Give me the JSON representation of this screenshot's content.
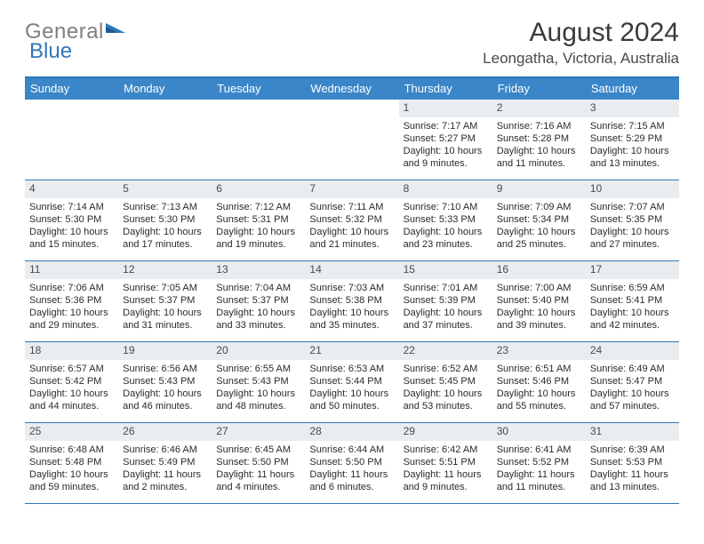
{
  "brand": {
    "part1": "General",
    "part2": "Blue"
  },
  "title": "August 2024",
  "location": "Leongatha, Victoria, Australia",
  "colors": {
    "header_bar": "#3a86c8",
    "border": "#2f77b8",
    "daynum_bg": "#e9edf0",
    "text": "#2b2b2b"
  },
  "dow": [
    "Sunday",
    "Monday",
    "Tuesday",
    "Wednesday",
    "Thursday",
    "Friday",
    "Saturday"
  ],
  "weeks": [
    [
      {
        "n": "",
        "sr": "",
        "ss": "",
        "dl": ""
      },
      {
        "n": "",
        "sr": "",
        "ss": "",
        "dl": ""
      },
      {
        "n": "",
        "sr": "",
        "ss": "",
        "dl": ""
      },
      {
        "n": "",
        "sr": "",
        "ss": "",
        "dl": ""
      },
      {
        "n": "1",
        "sr": "Sunrise: 7:17 AM",
        "ss": "Sunset: 5:27 PM",
        "dl": "Daylight: 10 hours and 9 minutes."
      },
      {
        "n": "2",
        "sr": "Sunrise: 7:16 AM",
        "ss": "Sunset: 5:28 PM",
        "dl": "Daylight: 10 hours and 11 minutes."
      },
      {
        "n": "3",
        "sr": "Sunrise: 7:15 AM",
        "ss": "Sunset: 5:29 PM",
        "dl": "Daylight: 10 hours and 13 minutes."
      }
    ],
    [
      {
        "n": "4",
        "sr": "Sunrise: 7:14 AM",
        "ss": "Sunset: 5:30 PM",
        "dl": "Daylight: 10 hours and 15 minutes."
      },
      {
        "n": "5",
        "sr": "Sunrise: 7:13 AM",
        "ss": "Sunset: 5:30 PM",
        "dl": "Daylight: 10 hours and 17 minutes."
      },
      {
        "n": "6",
        "sr": "Sunrise: 7:12 AM",
        "ss": "Sunset: 5:31 PM",
        "dl": "Daylight: 10 hours and 19 minutes."
      },
      {
        "n": "7",
        "sr": "Sunrise: 7:11 AM",
        "ss": "Sunset: 5:32 PM",
        "dl": "Daylight: 10 hours and 21 minutes."
      },
      {
        "n": "8",
        "sr": "Sunrise: 7:10 AM",
        "ss": "Sunset: 5:33 PM",
        "dl": "Daylight: 10 hours and 23 minutes."
      },
      {
        "n": "9",
        "sr": "Sunrise: 7:09 AM",
        "ss": "Sunset: 5:34 PM",
        "dl": "Daylight: 10 hours and 25 minutes."
      },
      {
        "n": "10",
        "sr": "Sunrise: 7:07 AM",
        "ss": "Sunset: 5:35 PM",
        "dl": "Daylight: 10 hours and 27 minutes."
      }
    ],
    [
      {
        "n": "11",
        "sr": "Sunrise: 7:06 AM",
        "ss": "Sunset: 5:36 PM",
        "dl": "Daylight: 10 hours and 29 minutes."
      },
      {
        "n": "12",
        "sr": "Sunrise: 7:05 AM",
        "ss": "Sunset: 5:37 PM",
        "dl": "Daylight: 10 hours and 31 minutes."
      },
      {
        "n": "13",
        "sr": "Sunrise: 7:04 AM",
        "ss": "Sunset: 5:37 PM",
        "dl": "Daylight: 10 hours and 33 minutes."
      },
      {
        "n": "14",
        "sr": "Sunrise: 7:03 AM",
        "ss": "Sunset: 5:38 PM",
        "dl": "Daylight: 10 hours and 35 minutes."
      },
      {
        "n": "15",
        "sr": "Sunrise: 7:01 AM",
        "ss": "Sunset: 5:39 PM",
        "dl": "Daylight: 10 hours and 37 minutes."
      },
      {
        "n": "16",
        "sr": "Sunrise: 7:00 AM",
        "ss": "Sunset: 5:40 PM",
        "dl": "Daylight: 10 hours and 39 minutes."
      },
      {
        "n": "17",
        "sr": "Sunrise: 6:59 AM",
        "ss": "Sunset: 5:41 PM",
        "dl": "Daylight: 10 hours and 42 minutes."
      }
    ],
    [
      {
        "n": "18",
        "sr": "Sunrise: 6:57 AM",
        "ss": "Sunset: 5:42 PM",
        "dl": "Daylight: 10 hours and 44 minutes."
      },
      {
        "n": "19",
        "sr": "Sunrise: 6:56 AM",
        "ss": "Sunset: 5:43 PM",
        "dl": "Daylight: 10 hours and 46 minutes."
      },
      {
        "n": "20",
        "sr": "Sunrise: 6:55 AM",
        "ss": "Sunset: 5:43 PM",
        "dl": "Daylight: 10 hours and 48 minutes."
      },
      {
        "n": "21",
        "sr": "Sunrise: 6:53 AM",
        "ss": "Sunset: 5:44 PM",
        "dl": "Daylight: 10 hours and 50 minutes."
      },
      {
        "n": "22",
        "sr": "Sunrise: 6:52 AM",
        "ss": "Sunset: 5:45 PM",
        "dl": "Daylight: 10 hours and 53 minutes."
      },
      {
        "n": "23",
        "sr": "Sunrise: 6:51 AM",
        "ss": "Sunset: 5:46 PM",
        "dl": "Daylight: 10 hours and 55 minutes."
      },
      {
        "n": "24",
        "sr": "Sunrise: 6:49 AM",
        "ss": "Sunset: 5:47 PM",
        "dl": "Daylight: 10 hours and 57 minutes."
      }
    ],
    [
      {
        "n": "25",
        "sr": "Sunrise: 6:48 AM",
        "ss": "Sunset: 5:48 PM",
        "dl": "Daylight: 10 hours and 59 minutes."
      },
      {
        "n": "26",
        "sr": "Sunrise: 6:46 AM",
        "ss": "Sunset: 5:49 PM",
        "dl": "Daylight: 11 hours and 2 minutes."
      },
      {
        "n": "27",
        "sr": "Sunrise: 6:45 AM",
        "ss": "Sunset: 5:50 PM",
        "dl": "Daylight: 11 hours and 4 minutes."
      },
      {
        "n": "28",
        "sr": "Sunrise: 6:44 AM",
        "ss": "Sunset: 5:50 PM",
        "dl": "Daylight: 11 hours and 6 minutes."
      },
      {
        "n": "29",
        "sr": "Sunrise: 6:42 AM",
        "ss": "Sunset: 5:51 PM",
        "dl": "Daylight: 11 hours and 9 minutes."
      },
      {
        "n": "30",
        "sr": "Sunrise: 6:41 AM",
        "ss": "Sunset: 5:52 PM",
        "dl": "Daylight: 11 hours and 11 minutes."
      },
      {
        "n": "31",
        "sr": "Sunrise: 6:39 AM",
        "ss": "Sunset: 5:53 PM",
        "dl": "Daylight: 11 hours and 13 minutes."
      }
    ]
  ]
}
